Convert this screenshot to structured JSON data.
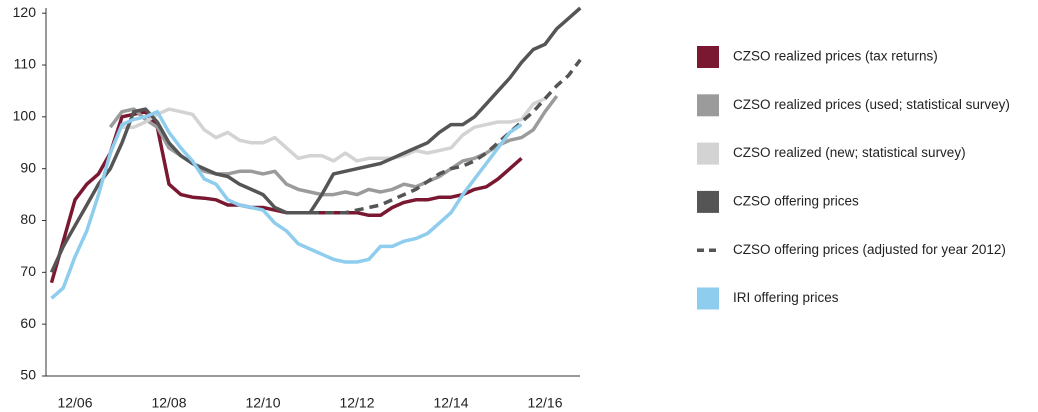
{
  "chart_data": {
    "type": "line",
    "categories": [
      null,
      null,
      "12/06",
      null,
      null,
      null,
      null,
      null,
      null,
      null,
      "12/08",
      null,
      null,
      null,
      null,
      null,
      null,
      null,
      "12/10",
      null,
      null,
      null,
      null,
      null,
      null,
      null,
      "12/12",
      null,
      null,
      null,
      null,
      null,
      null,
      null,
      "12/14",
      null,
      null,
      null,
      null,
      null,
      null,
      null,
      "12/16",
      null,
      null,
      null
    ],
    "ylim": [
      50,
      121
    ],
    "yticks": [
      50,
      60,
      70,
      80,
      90,
      100,
      110,
      120
    ],
    "series": [
      {
        "name": "CZSO realized prices (tax returns)",
        "color": "#7b1831",
        "dash": false,
        "values": [
          68,
          76,
          84,
          87,
          89,
          93,
          100,
          100.5,
          101,
          98,
          87,
          85,
          84.5,
          84.3,
          84,
          83,
          83,
          82.5,
          82.5,
          82,
          81.5,
          81.5,
          81.5,
          81.5,
          81.5,
          81.5,
          81.5,
          81,
          81,
          82.5,
          83.5,
          84,
          84,
          84.5,
          84.5,
          85,
          86,
          86.5,
          88,
          90,
          92,
          null,
          null,
          null,
          null,
          null
        ]
      },
      {
        "name": "CZSO realized prices (used; statistical survey)",
        "color": "#9b9b9b",
        "dash": false,
        "values": [
          null,
          null,
          null,
          null,
          null,
          98,
          101,
          101.5,
          99.5,
          98,
          94,
          92.5,
          91,
          89.5,
          89,
          89,
          89.5,
          89.5,
          89,
          89.5,
          87,
          86,
          85.5,
          85,
          85,
          85.5,
          85,
          86,
          85.5,
          86,
          87,
          86.5,
          87.5,
          88.5,
          90,
          91.5,
          92,
          93,
          94.5,
          95.5,
          96,
          97.5,
          101,
          104,
          null,
          null
        ]
      },
      {
        "name": "CZSO realized (new; statistical survey)",
        "color": "#d3d3d3",
        "dash": false,
        "values": [
          null,
          null,
          null,
          null,
          null,
          null,
          98,
          98,
          99,
          100.5,
          101.5,
          101,
          100.5,
          97.5,
          96,
          97,
          95.5,
          95,
          95,
          96,
          94,
          92,
          92.5,
          92.5,
          91.5,
          93,
          91.5,
          92,
          92,
          92,
          92.5,
          93.5,
          93,
          93.5,
          94,
          96.5,
          98,
          98.5,
          99,
          99,
          99.5,
          102.5,
          103.5,
          null,
          null,
          null
        ]
      },
      {
        "name": "CZSO offering prices",
        "color": "#555555",
        "dash": false,
        "values": [
          70,
          75,
          79,
          83,
          87,
          90,
          95,
          101,
          101.5,
          99,
          95,
          92.5,
          91,
          90,
          89,
          88.5,
          87,
          86,
          85,
          82.5,
          81.5,
          81.5,
          81.5,
          85,
          89,
          89.5,
          90,
          90.5,
          91,
          92,
          93,
          94,
          95,
          97,
          98.5,
          98.5,
          100,
          102.5,
          105,
          107.5,
          110.5,
          113,
          114,
          117,
          119,
          121
        ]
      },
      {
        "name": "CZSO offering prices (adjusted for year 2012)",
        "color": "#555555",
        "dash": true,
        "values": [
          null,
          null,
          null,
          null,
          null,
          null,
          null,
          null,
          null,
          null,
          null,
          null,
          null,
          null,
          null,
          null,
          null,
          null,
          null,
          null,
          null,
          null,
          81.5,
          81.5,
          81.5,
          81.5,
          82,
          82.5,
          83,
          84,
          85,
          86,
          87.5,
          89,
          90,
          90.5,
          91.5,
          93,
          95,
          97,
          99,
          101,
          103.5,
          106,
          108,
          111
        ]
      },
      {
        "name": "IRI offering prices",
        "color": "#8ecdee",
        "dash": false,
        "values": [
          65,
          67,
          73,
          78,
          85,
          93,
          98.5,
          99.5,
          100,
          101,
          97,
          94,
          91.5,
          88,
          87,
          84,
          83,
          82.5,
          82,
          79.5,
          78,
          75.5,
          74.5,
          73.5,
          72.5,
          72,
          72,
          72.5,
          75,
          75,
          76,
          76.5,
          77.5,
          79.5,
          81.5,
          85,
          88,
          91,
          94,
          97,
          98.5,
          null,
          null,
          null,
          null,
          null
        ]
      }
    ]
  }
}
